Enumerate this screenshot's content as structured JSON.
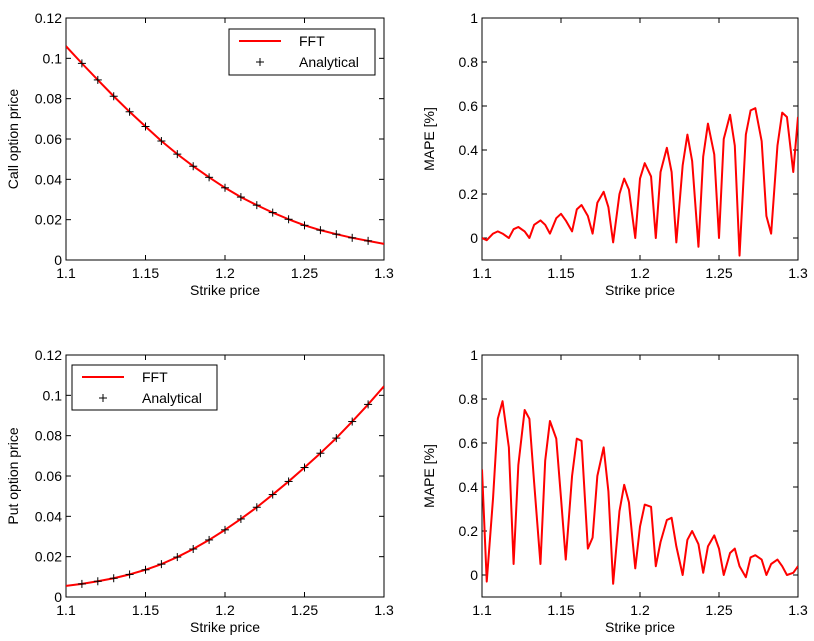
{
  "chart_data": [
    {
      "id": "call-price",
      "type": "line",
      "xlabel": "Strike price",
      "ylabel": "Call option price",
      "xlim": [
        1.1,
        1.3
      ],
      "ylim": [
        0,
        0.12
      ],
      "xticks": [
        1.1,
        1.15,
        1.2,
        1.25,
        1.3
      ],
      "xtick_labels": [
        "1.1",
        "1.15",
        "1.2",
        "1.25",
        "1.3"
      ],
      "yticks": [
        0,
        0.02,
        0.04,
        0.06,
        0.08,
        0.1,
        0.12
      ],
      "ytick_labels": [
        "0",
        "0.02",
        "0.04",
        "0.06",
        "0.08",
        "0.1",
        "0.12"
      ],
      "legend_position": "top-right",
      "series": [
        {
          "name": "FFT",
          "style": "line",
          "color": "#ff0000",
          "x": [
            1.1,
            1.11,
            1.12,
            1.13,
            1.14,
            1.15,
            1.16,
            1.17,
            1.18,
            1.19,
            1.2,
            1.21,
            1.22,
            1.23,
            1.24,
            1.25,
            1.26,
            1.27,
            1.28,
            1.29,
            1.3
          ],
          "values": [
            0.106,
            0.0975,
            0.0893,
            0.0812,
            0.0735,
            0.0662,
            0.059,
            0.0525,
            0.0465,
            0.041,
            0.0358,
            0.0312,
            0.0272,
            0.0235,
            0.0202,
            0.0172,
            0.0148,
            0.0128,
            0.011,
            0.0095,
            0.008
          ]
        },
        {
          "name": "Analytical",
          "style": "marker",
          "color": "#000000",
          "x": [
            1.11,
            1.12,
            1.13,
            1.14,
            1.15,
            1.16,
            1.17,
            1.18,
            1.19,
            1.2,
            1.21,
            1.22,
            1.23,
            1.24,
            1.25,
            1.26,
            1.27,
            1.28,
            1.29
          ],
          "values": [
            0.0975,
            0.0893,
            0.0812,
            0.0735,
            0.0662,
            0.059,
            0.0525,
            0.0465,
            0.041,
            0.0358,
            0.0312,
            0.0272,
            0.0235,
            0.0202,
            0.0172,
            0.0148,
            0.0128,
            0.011,
            0.0095
          ]
        }
      ]
    },
    {
      "id": "call-mape",
      "type": "line",
      "xlabel": "Strike price",
      "ylabel": "MAPE [%]",
      "xlim": [
        1.1,
        1.3
      ],
      "ylim": [
        -0.1,
        1
      ],
      "xticks": [
        1.1,
        1.15,
        1.2,
        1.25,
        1.3
      ],
      "xtick_labels": [
        "1.1",
        "1.15",
        "1.2",
        "1.25",
        "1.3"
      ],
      "yticks": [
        0,
        0.2,
        0.4,
        0.6,
        0.8,
        1
      ],
      "ytick_labels": [
        "0",
        "0.2",
        "0.4",
        "0.6",
        "0.8",
        "1"
      ],
      "series": [
        {
          "name": "MAPE",
          "style": "line",
          "color": "#ff0000",
          "x": [
            1.1,
            1.103,
            1.107,
            1.11,
            1.113,
            1.117,
            1.12,
            1.123,
            1.127,
            1.13,
            1.133,
            1.137,
            1.14,
            1.143,
            1.147,
            1.15,
            1.153,
            1.157,
            1.16,
            1.163,
            1.167,
            1.17,
            1.173,
            1.177,
            1.18,
            1.183,
            1.187,
            1.19,
            1.193,
            1.197,
            1.2,
            1.203,
            1.207,
            1.21,
            1.213,
            1.217,
            1.22,
            1.223,
            1.227,
            1.23,
            1.233,
            1.237,
            1.24,
            1.243,
            1.247,
            1.25,
            1.253,
            1.257,
            1.26,
            1.263,
            1.267,
            1.27,
            1.273,
            1.277,
            1.28,
            1.283,
            1.287,
            1.29,
            1.293,
            1.297,
            1.3
          ],
          "values": [
            0.0,
            -0.01,
            0.02,
            0.03,
            0.02,
            0.0,
            0.04,
            0.05,
            0.03,
            0.0,
            0.06,
            0.08,
            0.06,
            0.02,
            0.09,
            0.11,
            0.08,
            0.03,
            0.13,
            0.15,
            0.1,
            0.02,
            0.16,
            0.21,
            0.14,
            -0.02,
            0.2,
            0.27,
            0.22,
            0.0,
            0.27,
            0.34,
            0.28,
            0.0,
            0.3,
            0.41,
            0.3,
            -0.02,
            0.33,
            0.47,
            0.35,
            -0.04,
            0.37,
            0.52,
            0.38,
            0.0,
            0.45,
            0.56,
            0.42,
            -0.08,
            0.47,
            0.58,
            0.59,
            0.44,
            0.1,
            0.02,
            0.42,
            0.57,
            0.55,
            0.3,
            0.55
          ]
        }
      ]
    },
    {
      "id": "put-price",
      "type": "line",
      "xlabel": "Strike price",
      "ylabel": "Put option price",
      "xlim": [
        1.1,
        1.3
      ],
      "ylim": [
        0,
        0.12
      ],
      "xticks": [
        1.1,
        1.15,
        1.2,
        1.25,
        1.3
      ],
      "xtick_labels": [
        "1.1",
        "1.15",
        "1.2",
        "1.25",
        "1.3"
      ],
      "yticks": [
        0,
        0.02,
        0.04,
        0.06,
        0.08,
        0.1,
        0.12
      ],
      "ytick_labels": [
        "0",
        "0.02",
        "0.04",
        "0.06",
        "0.08",
        "0.1",
        "0.12"
      ],
      "legend_position": "top-left",
      "series": [
        {
          "name": "FFT",
          "style": "line",
          "color": "#ff0000",
          "x": [
            1.1,
            1.11,
            1.12,
            1.13,
            1.14,
            1.15,
            1.16,
            1.17,
            1.18,
            1.19,
            1.2,
            1.21,
            1.22,
            1.23,
            1.24,
            1.25,
            1.26,
            1.27,
            1.28,
            1.29,
            1.3
          ],
          "values": [
            0.0055,
            0.0065,
            0.0078,
            0.0093,
            0.0112,
            0.0135,
            0.0163,
            0.0198,
            0.0238,
            0.0283,
            0.0333,
            0.0387,
            0.0445,
            0.0508,
            0.0573,
            0.0642,
            0.0713,
            0.0788,
            0.087,
            0.0955,
            0.1045
          ]
        },
        {
          "name": "Analytical",
          "style": "marker",
          "color": "#000000",
          "x": [
            1.11,
            1.12,
            1.13,
            1.14,
            1.15,
            1.16,
            1.17,
            1.18,
            1.19,
            1.2,
            1.21,
            1.22,
            1.23,
            1.24,
            1.25,
            1.26,
            1.27,
            1.28,
            1.29
          ],
          "values": [
            0.0065,
            0.0078,
            0.0093,
            0.0112,
            0.0135,
            0.0163,
            0.0198,
            0.0238,
            0.0283,
            0.0333,
            0.0387,
            0.0445,
            0.0508,
            0.0573,
            0.0642,
            0.0713,
            0.0788,
            0.087,
            0.0955
          ]
        }
      ]
    },
    {
      "id": "put-mape",
      "type": "line",
      "xlabel": "Strike price",
      "ylabel": "MAPE [%]",
      "xlim": [
        1.1,
        1.3
      ],
      "ylim": [
        -0.1,
        1
      ],
      "xticks": [
        1.1,
        1.15,
        1.2,
        1.25,
        1.3
      ],
      "xtick_labels": [
        "1.1",
        "1.15",
        "1.2",
        "1.25",
        "1.3"
      ],
      "yticks": [
        0,
        0.2,
        0.4,
        0.6,
        0.8,
        1
      ],
      "ytick_labels": [
        "0",
        "0.2",
        "0.4",
        "0.6",
        "0.8",
        "1"
      ],
      "series": [
        {
          "name": "MAPE",
          "style": "line",
          "color": "#ff0000",
          "x": [
            1.1,
            1.103,
            1.107,
            1.11,
            1.113,
            1.117,
            1.12,
            1.123,
            1.127,
            1.13,
            1.133,
            1.137,
            1.14,
            1.143,
            1.147,
            1.15,
            1.153,
            1.157,
            1.16,
            1.163,
            1.167,
            1.17,
            1.173,
            1.177,
            1.18,
            1.183,
            1.187,
            1.19,
            1.193,
            1.197,
            1.2,
            1.203,
            1.207,
            1.21,
            1.213,
            1.217,
            1.22,
            1.223,
            1.227,
            1.23,
            1.233,
            1.237,
            1.24,
            1.243,
            1.247,
            1.25,
            1.253,
            1.257,
            1.26,
            1.263,
            1.267,
            1.27,
            1.273,
            1.277,
            1.28,
            1.283,
            1.287,
            1.29,
            1.293,
            1.297,
            1.3
          ],
          "values": [
            0.48,
            -0.03,
            0.35,
            0.71,
            0.79,
            0.58,
            0.05,
            0.5,
            0.75,
            0.71,
            0.42,
            0.05,
            0.52,
            0.7,
            0.62,
            0.35,
            0.07,
            0.45,
            0.62,
            0.61,
            0.12,
            0.17,
            0.45,
            0.58,
            0.38,
            -0.04,
            0.29,
            0.41,
            0.33,
            0.03,
            0.22,
            0.32,
            0.31,
            0.04,
            0.15,
            0.25,
            0.26,
            0.13,
            0.0,
            0.16,
            0.2,
            0.14,
            0.01,
            0.13,
            0.18,
            0.12,
            0.0,
            0.1,
            0.12,
            0.04,
            -0.01,
            0.08,
            0.09,
            0.07,
            0.0,
            0.05,
            0.07,
            0.04,
            0.0,
            0.01,
            0.04
          ]
        }
      ]
    }
  ]
}
